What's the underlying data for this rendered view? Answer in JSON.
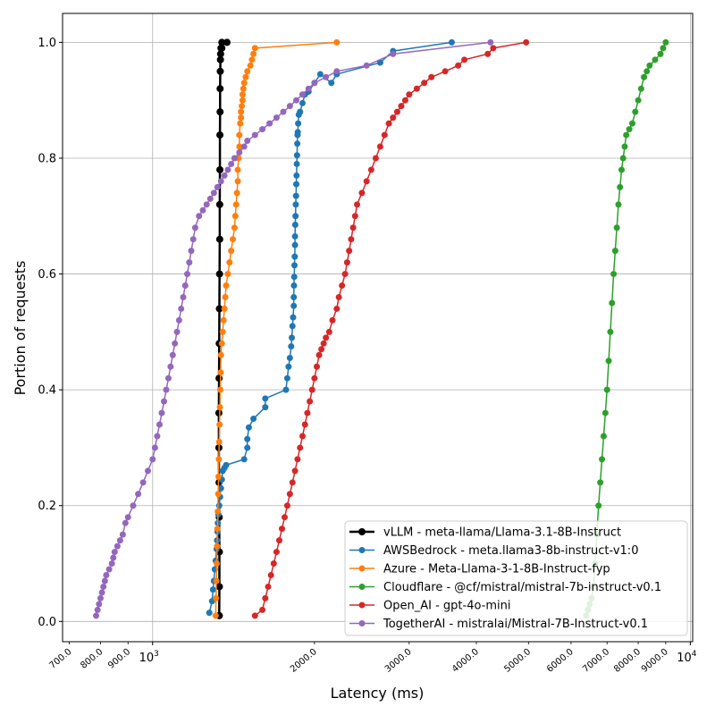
{
  "chart_data": {
    "type": "line",
    "xlabel": "Latency (ms)",
    "ylabel": "Portion of requests",
    "xscale": "log",
    "xlim": [
      680,
      10100
    ],
    "ylim": [
      -0.035,
      1.05
    ],
    "grid": true,
    "legend_position": "bottom-right",
    "yticks": [
      "0.0",
      "0.2",
      "0.4",
      "0.6",
      "0.8",
      "1.0"
    ],
    "ytick_values": [
      0.0,
      0.2,
      0.4,
      0.6,
      0.8,
      1.0
    ],
    "xticks_major": [
      {
        "value": 1000,
        "label": "10",
        "exp": "3"
      },
      {
        "value": 10000,
        "label": "10",
        "exp": "4"
      }
    ],
    "xticks_minor": [
      {
        "value": 700,
        "label": "700.0"
      },
      {
        "value": 800,
        "label": "800.0"
      },
      {
        "value": 900,
        "label": "900.0"
      },
      {
        "value": 2000,
        "label": "2000.0"
      },
      {
        "value": 3000,
        "label": "3000.0"
      },
      {
        "value": 4000,
        "label": "4000.0"
      },
      {
        "value": 5000,
        "label": "5000.0"
      },
      {
        "value": 6000,
        "label": "6000.0"
      },
      {
        "value": 7000,
        "label": "7000.0"
      },
      {
        "value": 8000,
        "label": "8000.0"
      },
      {
        "value": 9000,
        "label": "9000.0"
      }
    ],
    "series": [
      {
        "name": "vLLM - meta-llama/Llama-3.1-8B-Instruct",
        "color": "#000000",
        "kind": "vertical",
        "x": [
          1330,
          1331,
          1331,
          1330,
          1329,
          1328,
          1328,
          1329,
          1330,
          1331,
          1332,
          1333,
          1333,
          1334,
          1334,
          1335,
          1335,
          1336,
          1337,
          1338,
          1340,
          1345
        ],
        "y": [
          0.01,
          0.06,
          0.12,
          0.18,
          0.24,
          0.3,
          0.36,
          0.42,
          0.48,
          0.54,
          0.6,
          0.66,
          0.72,
          0.78,
          0.84,
          0.88,
          0.92,
          0.95,
          0.97,
          0.98,
          0.99,
          1.0
        ],
        "extra_points": [
          {
            "x": 1330,
            "y": 0.01
          },
          {
            "x": 1345,
            "y": 0.99
          },
          {
            "x": 1375,
            "y": 1.0
          }
        ]
      },
      {
        "name": "AWSBedrock - meta.llama3-8b-instruct-v1:0",
        "color": "#1f77b4",
        "x": [
          1275,
          1290,
          1295,
          1300,
          1305,
          1310,
          1315,
          1318,
          1320,
          1322,
          1325,
          1330,
          1335,
          1340,
          1345,
          1350,
          1360,
          1370,
          1480,
          1500,
          1500,
          1510,
          1540,
          1620,
          1620,
          1770,
          1780,
          1790,
          1800,
          1810,
          1815,
          1820,
          1825,
          1830,
          1830,
          1832,
          1834,
          1836,
          1838,
          1840,
          1840,
          1842,
          1844,
          1846,
          1848,
          1850,
          1852,
          1854,
          1856,
          1858,
          1860,
          1862,
          1865,
          1870,
          1880,
          1900,
          1920,
          1950,
          2000,
          2050,
          2150,
          2200,
          2650,
          2800,
          3600
        ],
        "y": [
          0.015,
          0.035,
          0.055,
          0.07,
          0.09,
          0.105,
          0.125,
          0.14,
          0.155,
          0.17,
          0.185,
          0.2,
          0.215,
          0.23,
          0.245,
          0.26,
          0.265,
          0.27,
          0.28,
          0.3,
          0.315,
          0.335,
          0.35,
          0.37,
          0.385,
          0.4,
          0.42,
          0.44,
          0.455,
          0.475,
          0.49,
          0.51,
          0.525,
          0.545,
          0.56,
          0.58,
          0.595,
          0.615,
          0.63,
          0.65,
          0.665,
          0.685,
          0.7,
          0.72,
          0.735,
          0.755,
          0.77,
          0.79,
          0.805,
          0.825,
          0.84,
          0.845,
          0.86,
          0.875,
          0.88,
          0.895,
          0.91,
          0.915,
          0.93,
          0.945,
          0.93,
          0.945,
          0.965,
          0.985,
          1.0
        ]
      },
      {
        "name": "Azure - Meta-Llama-3-1-8B-Instruct-fyp",
        "color": "#ff7f0e",
        "x": [
          1310,
          1312,
          1314,
          1316,
          1318,
          1320,
          1322,
          1324,
          1326,
          1328,
          1330,
          1332,
          1334,
          1336,
          1338,
          1340,
          1345,
          1350,
          1355,
          1360,
          1365,
          1370,
          1380,
          1390,
          1400,
          1410,
          1420,
          1425,
          1430,
          1435,
          1440,
          1440,
          1445,
          1450,
          1450,
          1455,
          1460,
          1460,
          1465,
          1470,
          1470,
          1475,
          1480,
          1490,
          1500,
          1520,
          1530,
          1540,
          1550,
          2200
        ],
        "y": [
          0.01,
          0.04,
          0.07,
          0.1,
          0.13,
          0.16,
          0.19,
          0.22,
          0.25,
          0.28,
          0.31,
          0.34,
          0.37,
          0.4,
          0.43,
          0.46,
          0.48,
          0.5,
          0.52,
          0.54,
          0.56,
          0.58,
          0.6,
          0.62,
          0.64,
          0.66,
          0.68,
          0.7,
          0.72,
          0.74,
          0.76,
          0.78,
          0.8,
          0.82,
          0.84,
          0.86,
          0.87,
          0.88,
          0.89,
          0.9,
          0.91,
          0.92,
          0.93,
          0.94,
          0.95,
          0.96,
          0.97,
          0.98,
          0.99,
          1.0
        ]
      },
      {
        "name": "Cloudflare - @cf/mistral/mistral-7b-instruct-v0.1",
        "color": "#2ca02c",
        "x": [
          6400,
          6450,
          6500,
          6550,
          6600,
          6650,
          6700,
          6750,
          6800,
          6850,
          6900,
          6950,
          7000,
          7050,
          7100,
          7150,
          7200,
          7250,
          7300,
          7350,
          7400,
          7450,
          7500,
          7550,
          7600,
          7700,
          7800,
          7900,
          8000,
          8100,
          8200,
          8300,
          8400,
          8600,
          8800,
          8900,
          9000
        ],
        "y": [
          0.01,
          0.02,
          0.03,
          0.04,
          0.06,
          0.1,
          0.15,
          0.2,
          0.24,
          0.28,
          0.32,
          0.36,
          0.4,
          0.45,
          0.5,
          0.55,
          0.6,
          0.64,
          0.68,
          0.72,
          0.75,
          0.78,
          0.8,
          0.82,
          0.84,
          0.85,
          0.86,
          0.88,
          0.9,
          0.92,
          0.94,
          0.95,
          0.96,
          0.97,
          0.98,
          0.99,
          1.0
        ]
      },
      {
        "name": "Open_AI - gpt-4o-mini",
        "color": "#d62728",
        "x": [
          1550,
          1600,
          1620,
          1640,
          1660,
          1680,
          1700,
          1720,
          1740,
          1760,
          1780,
          1800,
          1820,
          1840,
          1860,
          1880,
          1900,
          1920,
          1940,
          1960,
          1980,
          2000,
          2020,
          2040,
          2060,
          2080,
          2100,
          2130,
          2160,
          2200,
          2220,
          2250,
          2280,
          2300,
          2320,
          2340,
          2360,
          2380,
          2400,
          2450,
          2500,
          2550,
          2600,
          2650,
          2700,
          2750,
          2800,
          2850,
          2900,
          2950,
          3000,
          3100,
          3200,
          3300,
          3500,
          3700,
          3800,
          4200,
          4300,
          4950
        ],
        "y": [
          0.01,
          0.02,
          0.04,
          0.06,
          0.08,
          0.1,
          0.12,
          0.14,
          0.16,
          0.18,
          0.2,
          0.22,
          0.24,
          0.26,
          0.28,
          0.3,
          0.32,
          0.34,
          0.36,
          0.38,
          0.4,
          0.42,
          0.44,
          0.46,
          0.47,
          0.48,
          0.49,
          0.5,
          0.52,
          0.54,
          0.56,
          0.58,
          0.6,
          0.62,
          0.64,
          0.66,
          0.68,
          0.7,
          0.72,
          0.74,
          0.76,
          0.78,
          0.8,
          0.82,
          0.84,
          0.86,
          0.87,
          0.88,
          0.89,
          0.9,
          0.91,
          0.92,
          0.93,
          0.94,
          0.95,
          0.96,
          0.97,
          0.98,
          0.99,
          1.0
        ]
      },
      {
        "name": "TogetherAI - mistralai/Mistral-7B-Instruct-v0.1",
        "color": "#9467bd",
        "x": [
          785,
          790,
          795,
          800,
          805,
          810,
          815,
          820,
          830,
          840,
          845,
          850,
          860,
          870,
          880,
          890,
          900,
          920,
          940,
          960,
          980,
          1000,
          1010,
          1020,
          1030,
          1040,
          1050,
          1060,
          1070,
          1080,
          1090,
          1100,
          1110,
          1120,
          1130,
          1140,
          1150,
          1160,
          1170,
          1180,
          1190,
          1200,
          1220,
          1240,
          1260,
          1280,
          1300,
          1320,
          1340,
          1360,
          1380,
          1400,
          1420,
          1450,
          1480,
          1500,
          1550,
          1600,
          1650,
          1700,
          1750,
          1800,
          1850,
          1900,
          1950,
          2000,
          2100,
          2200,
          2500,
          2800,
          4250
        ],
        "y": [
          0.01,
          0.02,
          0.03,
          0.04,
          0.05,
          0.06,
          0.07,
          0.08,
          0.09,
          0.1,
          0.11,
          0.12,
          0.13,
          0.14,
          0.15,
          0.17,
          0.18,
          0.2,
          0.22,
          0.24,
          0.26,
          0.28,
          0.3,
          0.32,
          0.34,
          0.36,
          0.38,
          0.4,
          0.42,
          0.44,
          0.46,
          0.48,
          0.5,
          0.52,
          0.54,
          0.56,
          0.58,
          0.6,
          0.62,
          0.64,
          0.66,
          0.68,
          0.7,
          0.71,
          0.72,
          0.73,
          0.74,
          0.75,
          0.76,
          0.77,
          0.78,
          0.79,
          0.8,
          0.81,
          0.82,
          0.83,
          0.84,
          0.85,
          0.86,
          0.87,
          0.88,
          0.89,
          0.9,
          0.91,
          0.92,
          0.93,
          0.94,
          0.95,
          0.96,
          0.98,
          1.0
        ]
      }
    ]
  }
}
